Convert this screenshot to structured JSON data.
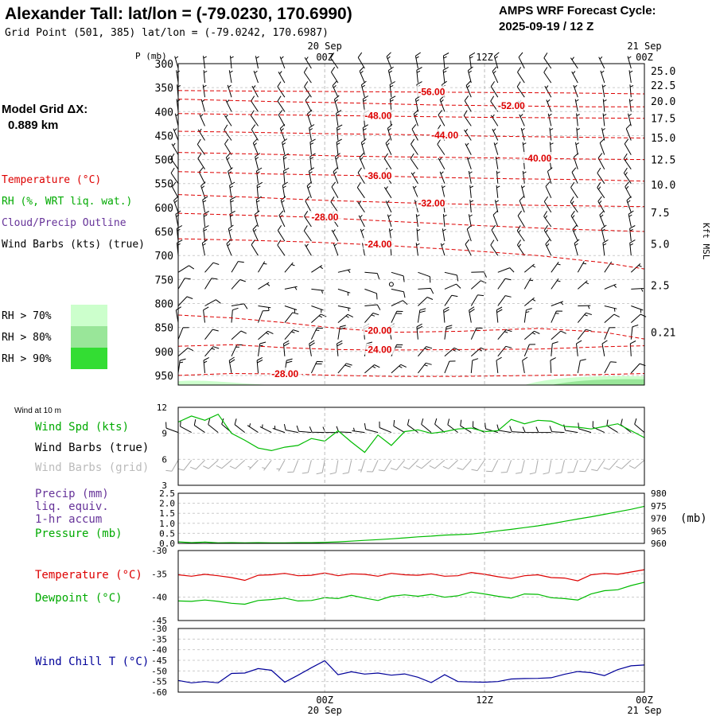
{
  "header": {
    "title": "Alexander Tall:  lat/lon = (-79.0230, 170.6990)",
    "grid_point": "Grid Point (501, 385) lat/lon = (-79.0242, 170.6987)",
    "cycle_line1": "AMPS WRF Forecast Cycle:",
    "cycle_line2": "2025-09-19 / 12  Z"
  },
  "left_panel": {
    "model_grid_label": "Model Grid ΔX:",
    "model_grid_value": "0.889 km",
    "legend_temperature": "Temperature (°C)",
    "legend_rh": "RH (%, WRT liq. wat.)",
    "legend_cloud": "Cloud/Precip Outline",
    "legend_wind": "Wind Barbs (kts) (true)",
    "rh_levels": [
      {
        "label": "RH > 70%",
        "color": "#ccffcc"
      },
      {
        "label": "RH > 80%",
        "color": "#99e699"
      },
      {
        "label": "RH > 90%",
        "color": "#33dd33"
      }
    ]
  },
  "time_axis": {
    "top_labels": [
      {
        "date": "20 Sep",
        "time": "00Z",
        "hour": 12
      },
      {
        "date": "",
        "time": "12Z",
        "hour": 24
      },
      {
        "date": "21 Sep",
        "time": "00Z",
        "hour": 36
      }
    ],
    "bottom_labels": [
      {
        "time": "00Z",
        "date": "20 Sep",
        "hour": 12
      },
      {
        "time": "12Z",
        "date": "",
        "hour": 24
      },
      {
        "time": "00Z",
        "date": "21 Sep",
        "hour": 36
      }
    ],
    "hour_range": [
      1,
      36
    ]
  },
  "colors": {
    "temperature": "#dd0000",
    "rh_green": "#00bb00",
    "cloud_purple": "#663399",
    "dewpoint": "#00bb00",
    "wind_chill": "#000099",
    "wind_grid": "#aaaaaa",
    "grid": "#bbbbbb"
  },
  "chart_data": [
    {
      "type": "contour",
      "name": "sounding-cross-section",
      "ylabel": "P (mb)",
      "ylabel_right": "Kft MSL",
      "pressure_range": [
        300,
        970
      ],
      "pressure_ticks": [
        "300",
        "350",
        "400",
        "450",
        "500",
        "550",
        "600",
        "650",
        "700",
        "750",
        "800",
        "850",
        "900",
        "950"
      ],
      "height_ticks": [
        {
          "label": "25.0",
          "p": 315
        },
        {
          "label": "22.5",
          "p": 345
        },
        {
          "label": "20.0",
          "p": 378
        },
        {
          "label": "17.5",
          "p": 414
        },
        {
          "label": "15.0",
          "p": 454
        },
        {
          "label": "12.5",
          "p": 500
        },
        {
          "label": "10.0",
          "p": 552
        },
        {
          "label": "7.5",
          "p": 610
        },
        {
          "label": "5.0",
          "p": 676
        },
        {
          "label": "2.5",
          "p": 762
        },
        {
          "label": "0.21",
          "p": 860
        }
      ],
      "temperature_contours": [
        {
          "label": "-56.00",
          "label_hour": 19,
          "points": [
            [
              1,
              356
            ],
            [
              6,
              357
            ],
            [
              12,
              358
            ],
            [
              18,
              359
            ],
            [
              24,
              360
            ],
            [
              30,
              361
            ],
            [
              36,
              363
            ]
          ]
        },
        {
          "label": "-52.00",
          "label_hour": 25,
          "points": [
            [
              1,
              374
            ],
            [
              8,
              379
            ],
            [
              14,
              382
            ],
            [
              20,
              386
            ],
            [
              26,
              388
            ],
            [
              32,
              390
            ],
            [
              36,
              390
            ]
          ]
        },
        {
          "label": "-48.00",
          "label_hour": 15,
          "points": [
            [
              1,
              404
            ],
            [
              6,
              406
            ],
            [
              12,
              408
            ],
            [
              18,
              410
            ],
            [
              24,
              412
            ],
            [
              30,
              413
            ],
            [
              36,
              414
            ]
          ]
        },
        {
          "label": "-44.00",
          "label_hour": 20,
          "points": [
            [
              1,
              441
            ],
            [
              6,
              443
            ],
            [
              12,
              446
            ],
            [
              18,
              448
            ],
            [
              24,
              451
            ],
            [
              30,
              453
            ],
            [
              36,
              455
            ]
          ]
        },
        {
          "label": "-40.00",
          "label_hour": 27,
          "points": [
            [
              1,
              485
            ],
            [
              8,
              489
            ],
            [
              14,
              493
            ],
            [
              20,
              495
            ],
            [
              26,
              497
            ],
            [
              32,
              499
            ],
            [
              36,
              500
            ]
          ]
        },
        {
          "label": "-36.00",
          "label_hour": 15,
          "points": [
            [
              1,
              525
            ],
            [
              8,
              530
            ],
            [
              14,
              533
            ],
            [
              20,
              537
            ],
            [
              26,
              540
            ],
            [
              32,
              542
            ],
            [
              36,
              545
            ]
          ]
        },
        {
          "label": "-32.00",
          "label_hour": 19,
          "points": [
            [
              1,
              573
            ],
            [
              6,
              578
            ],
            [
              12,
              585
            ],
            [
              18,
              590
            ],
            [
              24,
              594
            ],
            [
              30,
              596
            ],
            [
              36,
              598
            ]
          ]
        },
        {
          "label": "-28.00",
          "label_hour": 11,
          "points": [
            [
              1,
              612
            ],
            [
              6,
              616
            ],
            [
              11,
              620
            ],
            [
              18,
              630
            ],
            [
              24,
              638
            ],
            [
              30,
              645
            ],
            [
              36,
              650
            ]
          ]
        },
        {
          "label": "-24.00",
          "label_hour": 15,
          "points": [
            [
              1,
              665
            ],
            [
              6,
              668
            ],
            [
              11,
              672
            ],
            [
              16,
              678
            ],
            [
              22,
              688
            ],
            [
              28,
              700
            ],
            [
              33,
              715
            ],
            [
              36,
              728
            ]
          ]
        },
        {
          "label": "-20.00",
          "label_hour": 15,
          "points": [
            [
              1,
              824
            ],
            [
              5,
              830
            ],
            [
              9,
              840
            ],
            [
              13,
              852
            ],
            [
              17,
              860
            ],
            [
              22,
              858
            ],
            [
              28,
              852
            ],
            [
              33,
              860
            ],
            [
              36,
              874
            ]
          ]
        },
        {
          "label": "-24.00",
          "label_hour": 15,
          "points": [
            [
              1,
              889
            ],
            [
              5,
              886
            ],
            [
              9,
              892
            ],
            [
              13,
              896
            ],
            [
              17,
              897
            ],
            [
              22,
              896
            ],
            [
              28,
              895
            ],
            [
              33,
              890
            ],
            [
              36,
              888
            ]
          ]
        },
        {
          "label": "-28.00",
          "label_hour": 8,
          "points": [
            [
              1,
              950
            ],
            [
              5,
              946
            ],
            [
              9,
              947
            ],
            [
              13,
              950
            ],
            [
              17,
              952
            ],
            [
              22,
              952
            ],
            [
              28,
              950
            ],
            [
              33,
              948
            ],
            [
              36,
              946
            ]
          ]
        }
      ],
      "barb_pressures": [
        310,
        340,
        370,
        400,
        430,
        460,
        490,
        520,
        550,
        580,
        610,
        640,
        670,
        700,
        735,
        770,
        805,
        840,
        875,
        910,
        945
      ],
      "barb_hours": [
        1,
        3,
        5,
        7,
        9,
        11,
        13,
        15,
        17,
        19,
        21,
        23,
        25,
        27,
        29,
        31,
        33,
        35
      ]
    },
    {
      "type": "line",
      "name": "wind-speed-10m",
      "title": "Wind at 10 m",
      "series_label": "Wind Spd (kts)",
      "barbs_true_label": "Wind Barbs (true)",
      "barbs_grid_label": "Wind Barbs (grid)",
      "ylim": [
        3,
        12
      ],
      "y_ticks": [
        "3",
        "6",
        "9",
        "12"
      ],
      "x": [
        1,
        2,
        3,
        4,
        5,
        6,
        7,
        8,
        9,
        10,
        11,
        12,
        13,
        14,
        15,
        16,
        17,
        18,
        19,
        20,
        21,
        22,
        23,
        24,
        25,
        26,
        27,
        28,
        29,
        30,
        31,
        32,
        33,
        34,
        35,
        36
      ],
      "values": [
        10.3,
        11.0,
        10.5,
        11.2,
        9.0,
        8.2,
        7.3,
        7.0,
        7.4,
        7.6,
        8.4,
        8.1,
        9.3,
        8.0,
        6.8,
        8.8,
        7.6,
        9.2,
        9.4,
        9.0,
        9.2,
        9.5,
        9.6,
        9.2,
        9.3,
        10.6,
        10.1,
        10.5,
        10.4,
        9.8,
        9.7,
        9.5,
        9.8,
        10.1,
        9.3,
        8.5
      ]
    },
    {
      "type": "line",
      "name": "precip-pressure",
      "precip_label": "Precip (mm)",
      "precip_label2": "liq. equiv.",
      "precip_label3": "1-hr accum",
      "pressure_label": "Pressure (mb)",
      "unit_right": "(mb)",
      "precip_ylim": [
        0,
        2.5
      ],
      "precip_ticks": [
        "0.0",
        "0.5",
        "1.0",
        "1.5",
        "2.0",
        "2.5"
      ],
      "pressure_ylim": [
        960,
        980
      ],
      "pressure_ticks": [
        "960",
        "965",
        "970",
        "975",
        "980"
      ],
      "precip_values": [
        0,
        0,
        0,
        0,
        0,
        0,
        0,
        0,
        0,
        0,
        0,
        0,
        0,
        0,
        0,
        0,
        0,
        0,
        0,
        0,
        0,
        0,
        0,
        0,
        0,
        0,
        0,
        0,
        0,
        0,
        0,
        0,
        0,
        0,
        0,
        0
      ],
      "pressure_values": [
        960.6,
        960.3,
        960.5,
        960.2,
        960.3,
        960.2,
        960.3,
        960.2,
        960.2,
        960.3,
        960.3,
        960.4,
        960.6,
        960.9,
        961.2,
        961.5,
        961.8,
        962.2,
        962.6,
        962.9,
        963.3,
        963.5,
        963.7,
        964.3,
        965.0,
        965.6,
        966.3,
        967.0,
        967.8,
        968.8,
        969.7,
        970.6,
        971.6,
        972.6,
        973.6,
        974.8
      ]
    },
    {
      "type": "line",
      "name": "temperature-dewpoint",
      "temp_label": "Temperature (°C)",
      "dew_label": "Dewpoint (°C)",
      "ylim": [
        -45,
        -30
      ],
      "y_ticks": [
        "-30",
        "-35",
        "-40",
        "-45"
      ],
      "temperature": [
        -35.2,
        -35.5,
        -35.1,
        -35.4,
        -35.8,
        -36.4,
        -35.3,
        -35.2,
        -34.9,
        -35.4,
        -35.3,
        -34.8,
        -35.4,
        -35.0,
        -35.1,
        -35.5,
        -34.9,
        -35.2,
        -35.3,
        -35.0,
        -35.5,
        -35.4,
        -34.7,
        -35.1,
        -35.6,
        -36.0,
        -35.4,
        -35.2,
        -35.8,
        -35.9,
        -36.5,
        -35.2,
        -34.9,
        -35.1,
        -34.6,
        -34.1
      ],
      "dewpoint": [
        -40.8,
        -40.9,
        -40.6,
        -40.9,
        -41.3,
        -41.5,
        -40.7,
        -40.5,
        -40.2,
        -40.8,
        -40.7,
        -40.1,
        -40.3,
        -39.6,
        -40.2,
        -40.7,
        -39.8,
        -39.5,
        -39.8,
        -39.4,
        -40.0,
        -39.7,
        -38.9,
        -39.3,
        -39.8,
        -40.2,
        -39.3,
        -39.4,
        -40.1,
        -40.3,
        -40.6,
        -39.3,
        -38.6,
        -38.4,
        -37.5,
        -36.8
      ]
    },
    {
      "type": "line",
      "name": "wind-chill",
      "label": "Wind Chill T (°C)",
      "ylim": [
        -60,
        -30
      ],
      "y_ticks": [
        "-30",
        "-35",
        "-40",
        "-45",
        "-50",
        "-55",
        "-60"
      ],
      "values": [
        -54.5,
        -55.6,
        -55.0,
        -55.6,
        -51.2,
        -51.0,
        -48.9,
        -49.7,
        -55.3,
        -52.0,
        -48.5,
        -45.2,
        -51.8,
        -50.4,
        -51.5,
        -51.0,
        -52.0,
        -51.4,
        -53.0,
        -55.5,
        -51.8,
        -55.0,
        -55.2,
        -55.3,
        -55.0,
        -53.8,
        -53.6,
        -53.5,
        -53.2,
        -51.6,
        -50.3,
        -50.8,
        -52.2,
        -49.4,
        -47.6,
        -47.2
      ]
    }
  ]
}
